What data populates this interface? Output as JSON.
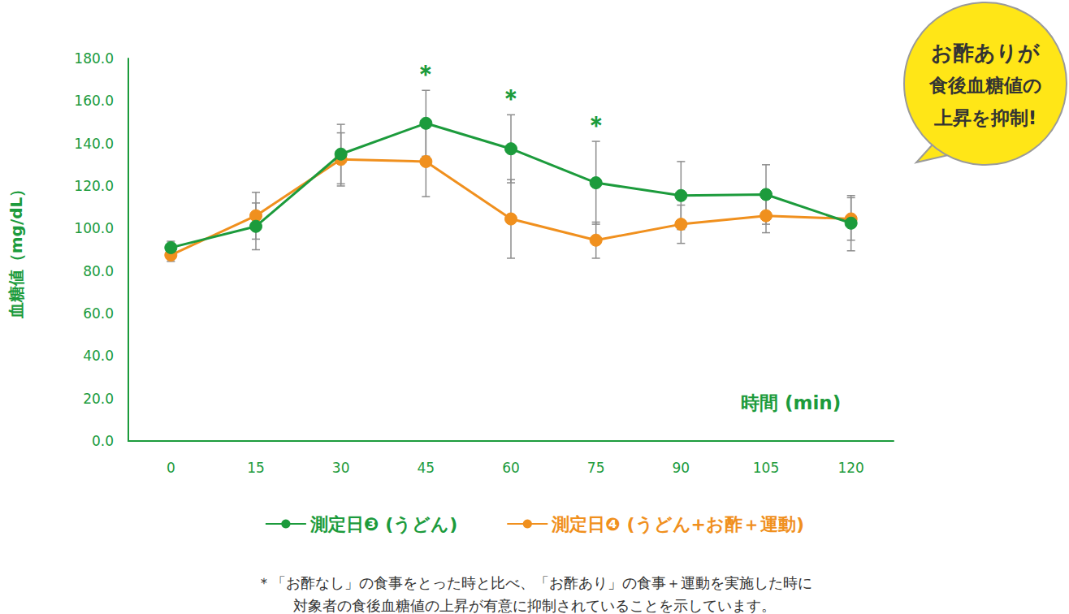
{
  "chart_data": {
    "type": "line",
    "x_label": "時間 (min)",
    "y_label": "血糖値（mg/dL）",
    "categories": [
      "0",
      "15",
      "30",
      "45",
      "60",
      "75",
      "90",
      "105",
      "120"
    ],
    "series": [
      {
        "name": "測定日❸ (うどん)",
        "color": "#1c9b3c",
        "marker": "circle",
        "values": [
          91,
          101,
          135,
          149.5,
          137.5,
          121.5,
          115.5,
          116,
          102.5
        ],
        "errors": [
          3,
          11,
          14,
          15.5,
          16,
          19.5,
          16,
          14,
          13
        ]
      },
      {
        "name": "測定日❹ (うどん+お酢＋運動)",
        "color": "#f0901e",
        "marker": "circle",
        "values": [
          87.5,
          106,
          132.5,
          131.5,
          104.5,
          94.5,
          102,
          106,
          104.5
        ],
        "errors": [
          3,
          11,
          12.5,
          16.5,
          18.5,
          8.5,
          9,
          8,
          10
        ]
      }
    ],
    "annotations": [
      {
        "x": "45",
        "text": "＊"
      },
      {
        "x": "60",
        "text": "＊"
      },
      {
        "x": "75",
        "text": "＊"
      }
    ],
    "callout": [
      "お酢ありが",
      "食後血糖値の",
      "上昇を抑制!"
    ],
    "footnote": [
      "＊「お酢なし」の食事をとった時と比べ、「お酢あり」の食事＋運動を実施した時に",
      "対象者の食後血糖値の上昇が有意に抑制されていることを示しています。"
    ],
    "ylim": [
      0,
      180
    ],
    "yticks": [
      {
        "value": 0,
        "label": "0.0"
      },
      {
        "value": 20,
        "label": "20.0"
      },
      {
        "value": 40,
        "label": "40.0"
      },
      {
        "value": 60,
        "label": "60.0"
      },
      {
        "value": 80,
        "label": "80.0"
      },
      {
        "value": 100,
        "label": "100.0"
      },
      {
        "value": 120,
        "label": "120.0"
      },
      {
        "value": 140,
        "label": "140.0"
      },
      {
        "value": 160,
        "label": "160.0"
      },
      {
        "value": 180,
        "label": "180.0"
      }
    ],
    "grid": false,
    "legend": "bottom"
  }
}
